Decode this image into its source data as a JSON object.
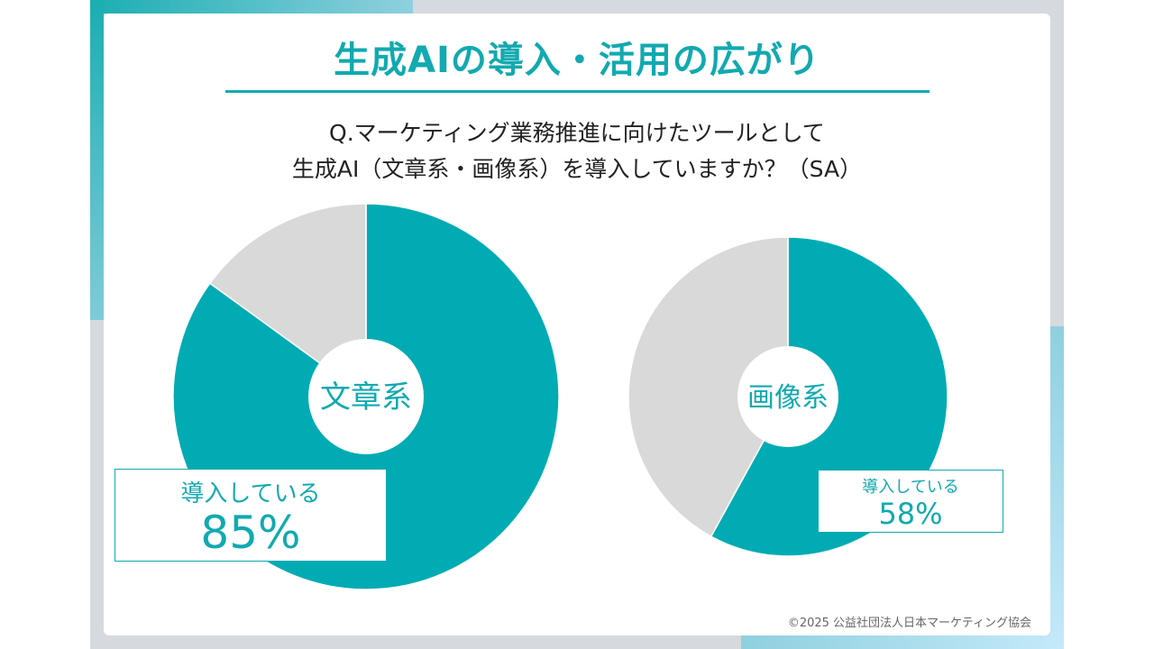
{
  "title": "生成AIの導入・活用の広がり",
  "question": {
    "line1": "Q.マーケティング業務推進に向けたツールとして",
    "line2": "生成AI（文章系・画像系）を導入していますか？（SA）"
  },
  "colors": {
    "accent": "#00abb3",
    "other": "#d9d9d9"
  },
  "chart_data": [
    {
      "type": "pie",
      "center_label": "文章系",
      "slices": [
        {
          "label": "導入している",
          "value": 85,
          "color": "#00abb3"
        },
        {
          "value": 15,
          "color": "#d9d9d9"
        }
      ],
      "annotation": {
        "label": "導入している",
        "value": "85%"
      }
    },
    {
      "type": "pie",
      "center_label": "画像系",
      "slices": [
        {
          "label": "導入している",
          "value": 58,
          "color": "#00abb3"
        },
        {
          "value": 42,
          "color": "#d9d9d9"
        }
      ],
      "annotation": {
        "label": "導入している",
        "value": "58%"
      }
    }
  ],
  "credit": "©2025 公益社団法人日本マーケティング協会"
}
